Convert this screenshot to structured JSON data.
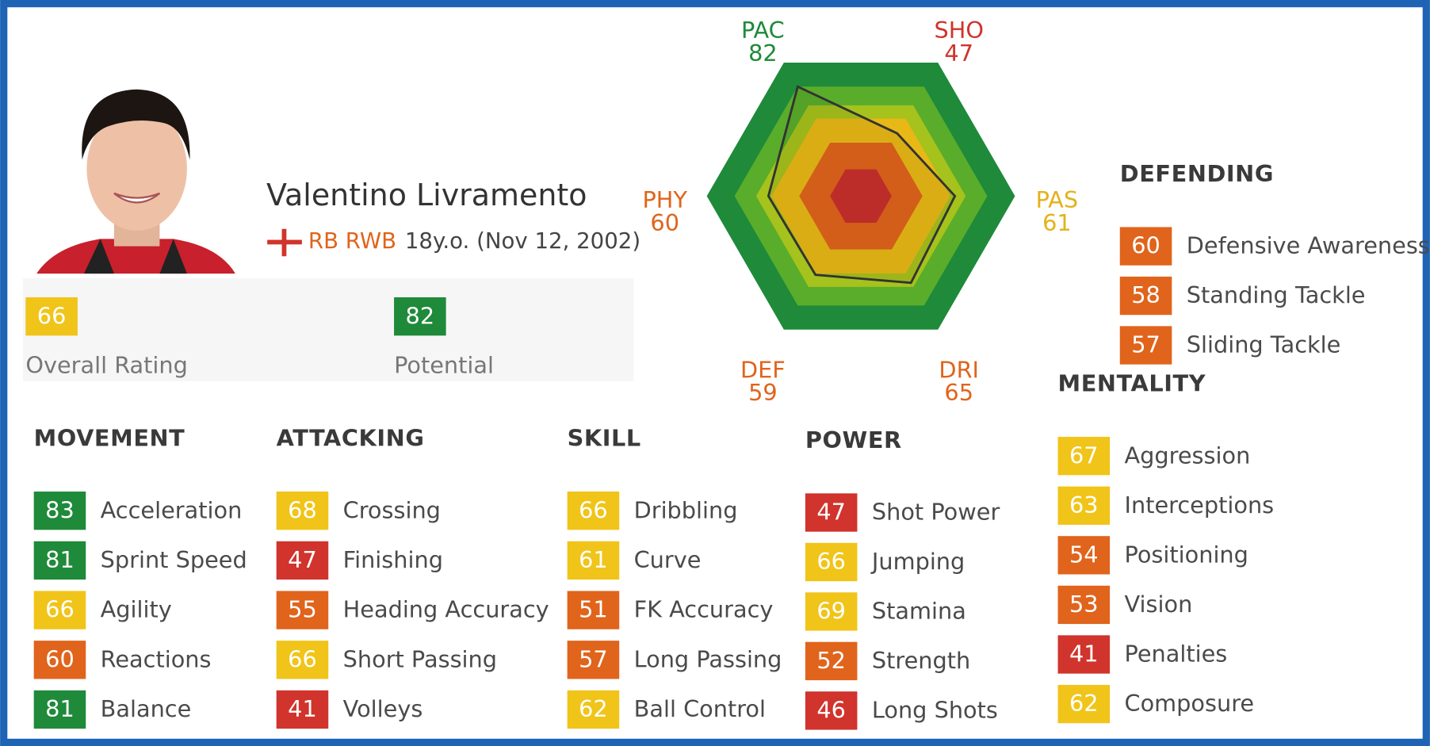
{
  "player": {
    "name": "Valentino Livramento",
    "positions": "RB RWB",
    "age": "18y.o. (Nov 12, 2002)"
  },
  "ratings": [
    {
      "value": 66,
      "label": "Overall Rating"
    },
    {
      "value": 82,
      "label": "Potential"
    }
  ],
  "chart_data": {
    "type": "radar",
    "categories": [
      "PAC",
      "SHO",
      "PAS",
      "DRI",
      "DEF",
      "PHY"
    ],
    "values": [
      82,
      47,
      61,
      65,
      59,
      60
    ],
    "colors": [
      "#1e8a3a",
      "#d0342c",
      "#e3b21a",
      "#e0641c",
      "#e0641c",
      "#e0641c"
    ],
    "rlim": [
      0,
      100
    ]
  },
  "groups": [
    {
      "title": "MOVEMENT",
      "stats": [
        {
          "value": 83,
          "name": "Acceleration"
        },
        {
          "value": 81,
          "name": "Sprint Speed"
        },
        {
          "value": 66,
          "name": "Agility"
        },
        {
          "value": 60,
          "name": "Reactions"
        },
        {
          "value": 81,
          "name": "Balance"
        }
      ]
    },
    {
      "title": "ATTACKING",
      "stats": [
        {
          "value": 68,
          "name": "Crossing"
        },
        {
          "value": 47,
          "name": "Finishing"
        },
        {
          "value": 55,
          "name": "Heading Accuracy"
        },
        {
          "value": 66,
          "name": "Short Passing"
        },
        {
          "value": 41,
          "name": "Volleys"
        }
      ]
    },
    {
      "title": "SKILL",
      "stats": [
        {
          "value": 66,
          "name": "Dribbling"
        },
        {
          "value": 61,
          "name": "Curve"
        },
        {
          "value": 51,
          "name": "FK Accuracy"
        },
        {
          "value": 57,
          "name": "Long Passing"
        },
        {
          "value": 62,
          "name": "Ball Control"
        }
      ]
    },
    {
      "title": "POWER",
      "stats": [
        {
          "value": 47,
          "name": "Shot Power"
        },
        {
          "value": 66,
          "name": "Jumping"
        },
        {
          "value": 69,
          "name": "Stamina"
        },
        {
          "value": 52,
          "name": "Strength"
        },
        {
          "value": 46,
          "name": "Long Shots"
        }
      ]
    },
    {
      "title": "DEFENDING",
      "stats": [
        {
          "value": 60,
          "name": "Defensive Awareness"
        },
        {
          "value": 58,
          "name": "Standing Tackle"
        },
        {
          "value": 57,
          "name": "Sliding Tackle"
        }
      ]
    },
    {
      "title": "MENTALITY",
      "stats": [
        {
          "value": 67,
          "name": "Aggression"
        },
        {
          "value": 63,
          "name": "Interceptions"
        },
        {
          "value": 54,
          "name": "Positioning"
        },
        {
          "value": 53,
          "name": "Vision"
        },
        {
          "value": 41,
          "name": "Penalties"
        },
        {
          "value": 62,
          "name": "Composure"
        }
      ]
    }
  ]
}
